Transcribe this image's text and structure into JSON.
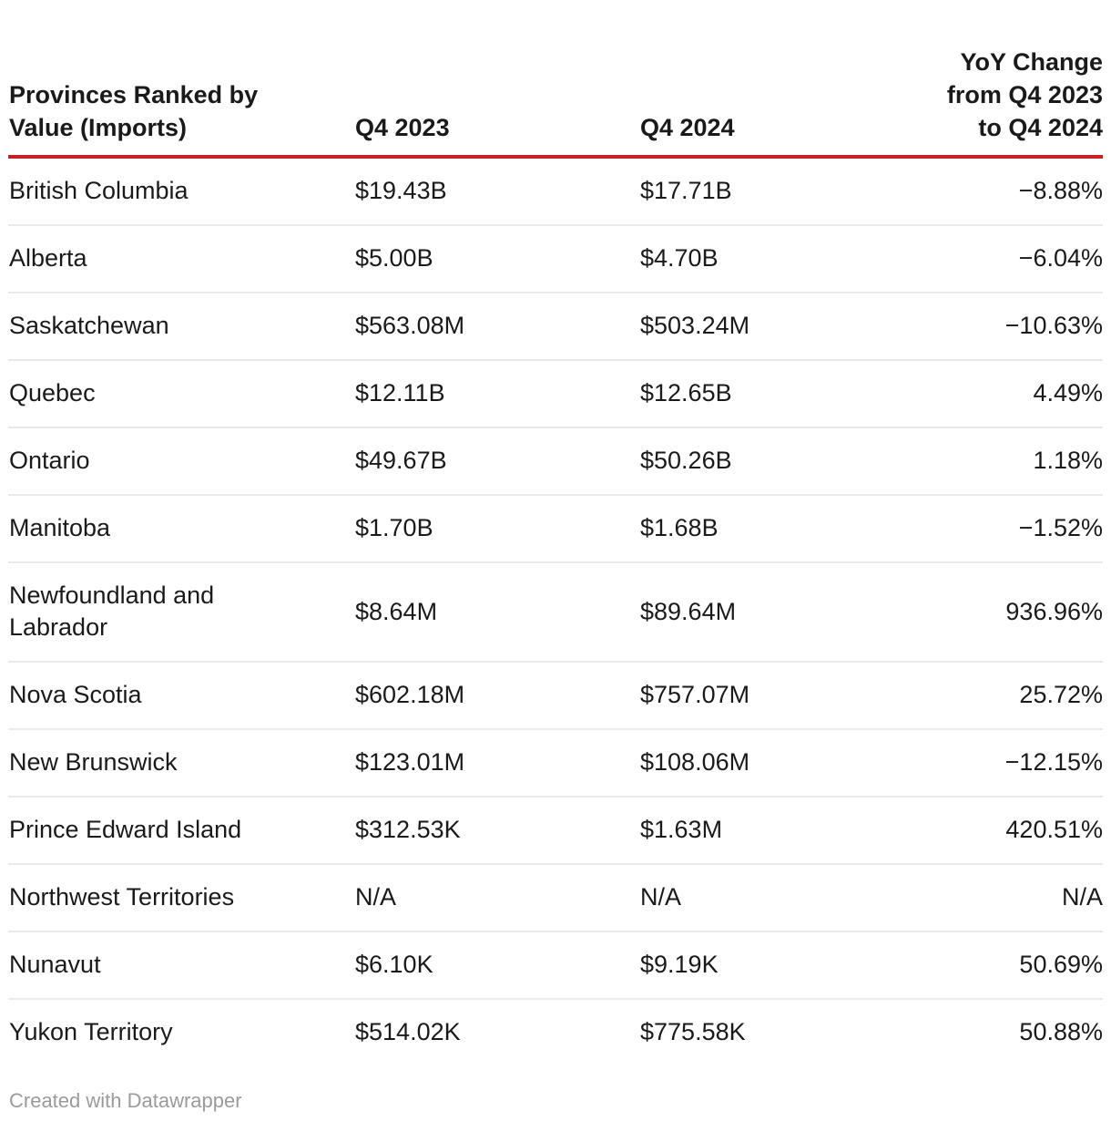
{
  "table": {
    "header": {
      "province": "Provinces Ranked by Value (Imports)",
      "q4_2023": "Q4 2023",
      "q4_2024": "Q4 2024",
      "yoy_change": "YoY Change from Q4 2023 to Q4 2024"
    },
    "rows": [
      {
        "province": "British Columbia",
        "q4_2023": "$19.43B",
        "q4_2024": "$17.71B",
        "yoy_change": "−8.88%"
      },
      {
        "province": "Alberta",
        "q4_2023": "$5.00B",
        "q4_2024": "$4.70B",
        "yoy_change": "−6.04%"
      },
      {
        "province": "Saskatchewan",
        "q4_2023": "$563.08M",
        "q4_2024": "$503.24M",
        "yoy_change": "−10.63%"
      },
      {
        "province": "Quebec",
        "q4_2023": "$12.11B",
        "q4_2024": "$12.65B",
        "yoy_change": "4.49%"
      },
      {
        "province": "Ontario",
        "q4_2023": "$49.67B",
        "q4_2024": "$50.26B",
        "yoy_change": "1.18%"
      },
      {
        "province": "Manitoba",
        "q4_2023": "$1.70B",
        "q4_2024": "$1.68B",
        "yoy_change": "−1.52%"
      },
      {
        "province": "Newfoundland and Labrador",
        "q4_2023": "$8.64M",
        "q4_2024": "$89.64M",
        "yoy_change": "936.96%"
      },
      {
        "province": "Nova Scotia",
        "q4_2023": "$602.18M",
        "q4_2024": "$757.07M",
        "yoy_change": "25.72%"
      },
      {
        "province": "New Brunswick",
        "q4_2023": "$123.01M",
        "q4_2024": "$108.06M",
        "yoy_change": "−12.15%"
      },
      {
        "province": "Prince Edward Island",
        "q4_2023": "$312.53K",
        "q4_2024": "$1.63M",
        "yoy_change": "420.51%"
      },
      {
        "province": "Northwest Territories",
        "q4_2023": "N/A",
        "q4_2024": "N/A",
        "yoy_change": "N/A"
      },
      {
        "province": "Nunavut",
        "q4_2023": "$6.10K",
        "q4_2024": "$9.19K",
        "yoy_change": "50.69%"
      },
      {
        "province": "Yukon Territory",
        "q4_2023": "$514.02K",
        "q4_2024": "$775.58K",
        "yoy_change": "50.88%"
      }
    ]
  },
  "footer": {
    "attribution": "Created with Datawrapper"
  },
  "colors": {
    "accent_rule": "#c42127",
    "row_divider": "#e9e9e9",
    "text": "#1a1a1a",
    "muted_text": "#9b9b9b"
  },
  "chart_data": {
    "type": "table",
    "title": "Provinces Ranked by Value (Imports)",
    "columns": [
      "Provinces Ranked by Value (Imports)",
      "Q4 2023",
      "Q4 2024",
      "YoY Change from Q4 2023 to Q4 2024"
    ],
    "rows": [
      [
        "British Columbia",
        "$19.43B",
        "$17.71B",
        "−8.88%"
      ],
      [
        "Alberta",
        "$5.00B",
        "$4.70B",
        "−6.04%"
      ],
      [
        "Saskatchewan",
        "$563.08M",
        "$503.24M",
        "−10.63%"
      ],
      [
        "Quebec",
        "$12.11B",
        "$12.65B",
        "4.49%"
      ],
      [
        "Ontario",
        "$49.67B",
        "$50.26B",
        "1.18%"
      ],
      [
        "Manitoba",
        "$1.70B",
        "$1.68B",
        "−1.52%"
      ],
      [
        "Newfoundland and Labrador",
        "$8.64M",
        "$89.64M",
        "936.96%"
      ],
      [
        "Nova Scotia",
        "$602.18M",
        "$757.07M",
        "25.72%"
      ],
      [
        "New Brunswick",
        "$123.01M",
        "$108.06M",
        "−12.15%"
      ],
      [
        "Prince Edward Island",
        "$312.53K",
        "$1.63M",
        "420.51%"
      ],
      [
        "Northwest Territories",
        "N/A",
        "N/A",
        "N/A"
      ],
      [
        "Nunavut",
        "$6.10K",
        "$9.19K",
        "50.69%"
      ],
      [
        "Yukon Territory",
        "$514.02K",
        "$775.58K",
        "50.88%"
      ]
    ],
    "layout_hints": {
      "value_columns_align": "left",
      "yoy_column_align": "right",
      "header_rule_color": "#c42127",
      "grid": "horizontal-dividers-only"
    }
  }
}
